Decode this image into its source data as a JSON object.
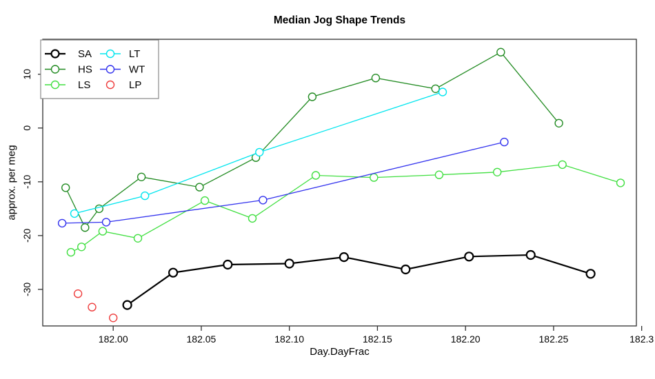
{
  "title": "Median Jog Shape Trends",
  "chart_data": {
    "type": "line",
    "title": "Median Jog Shape Trends",
    "xlabel": "Day.DayFrac",
    "ylabel": "approx. per meg",
    "xlim": [
      181.96,
      182.297
    ],
    "ylim": [
      -36.8,
      16.5
    ],
    "x_ticks": [
      182.0,
      182.05,
      182.1,
      182.15,
      182.2,
      182.25,
      182.3
    ],
    "x_tick_labels": [
      "182.00",
      "182.05",
      "182.10",
      "182.15",
      "182.20",
      "182.25",
      "182.3"
    ],
    "y_ticks": [
      10,
      0,
      -10,
      -20,
      -30
    ],
    "y_tick_labels": [
      "10",
      "0",
      "-10",
      "-20",
      "-30"
    ],
    "grid": false,
    "legend_position": "top-left",
    "series": [
      {
        "name": "SA",
        "color": "#000000",
        "line": true,
        "line_width": 2.2,
        "marker": "open-circle",
        "x": [
          182.008,
          182.034,
          182.065,
          182.1,
          182.131,
          182.166,
          182.202,
          182.237,
          182.271
        ],
        "y": [
          -32.9,
          -26.9,
          -25.4,
          -25.2,
          -24.0,
          -26.3,
          -23.9,
          -23.6,
          -27.1
        ]
      },
      {
        "name": "HS",
        "color": "#228B22",
        "line": true,
        "line_width": 1.3,
        "marker": "open-circle",
        "x": [
          181.973,
          181.984,
          181.992,
          182.016,
          182.049,
          182.081,
          182.113,
          182.149,
          182.183,
          182.22,
          182.253
        ],
        "y": [
          -11.1,
          -18.5,
          -15.0,
          -9.1,
          -11.0,
          -5.5,
          5.8,
          9.3,
          7.3,
          14.1,
          0.9
        ]
      },
      {
        "name": "LS",
        "color": "#40DF40",
        "line": true,
        "line_width": 1.3,
        "marker": "open-circle",
        "x": [
          181.976,
          181.982,
          181.994,
          182.014,
          182.052,
          182.079,
          182.115,
          182.148,
          182.185,
          182.218,
          182.255,
          182.288
        ],
        "y": [
          -23.1,
          -22.1,
          -19.2,
          -20.5,
          -13.5,
          -16.8,
          -8.8,
          -9.2,
          -8.7,
          -8.2,
          -6.8,
          -10.2
        ]
      },
      {
        "name": "LT",
        "color": "#00E5EE",
        "line": true,
        "line_width": 1.3,
        "marker": "open-circle",
        "x": [
          181.978,
          182.018,
          182.083,
          182.187
        ],
        "y": [
          -15.9,
          -12.6,
          -4.5,
          6.7
        ]
      },
      {
        "name": "WT",
        "color": "#3333EE",
        "line": true,
        "line_width": 1.3,
        "marker": "open-circle",
        "x": [
          181.971,
          181.996,
          182.085,
          182.222
        ],
        "y": [
          -17.7,
          -17.5,
          -13.4,
          -2.6
        ]
      },
      {
        "name": "LP",
        "color": "#EE3B3B",
        "line": false,
        "line_width": 1.3,
        "marker": "open-circle",
        "x": [
          181.98,
          181.988,
          182.0
        ],
        "y": [
          -30.8,
          -33.3,
          -35.3
        ]
      }
    ]
  },
  "legend": {
    "columns": [
      [
        "SA",
        "HS",
        "LS"
      ],
      [
        "LT",
        "WT",
        "LP"
      ]
    ]
  },
  "colors": {
    "axis_box": "#2e2e2e",
    "legend_border": "#888888",
    "text": "#000000",
    "background": "#ffffff"
  }
}
